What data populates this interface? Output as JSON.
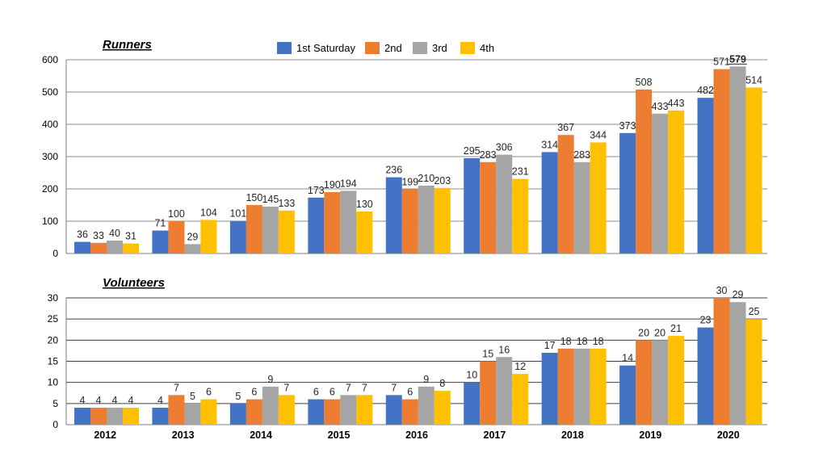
{
  "chart_data": [
    {
      "type": "bar",
      "title": "Runners",
      "categories": [
        "2012",
        "2013",
        "2014",
        "2015",
        "2016",
        "2017",
        "2018",
        "2019",
        "2020"
      ],
      "ylim": [
        0,
        600
      ],
      "yticks": [
        0,
        100,
        200,
        300,
        400,
        500,
        600
      ],
      "legend": "top-center",
      "series": [
        {
          "name": "1st Saturday",
          "color": "#4472C4",
          "values": [
            36,
            71,
            101,
            173,
            236,
            295,
            314,
            373,
            482
          ]
        },
        {
          "name": "2nd",
          "color": "#ED7D31",
          "values": [
            33,
            100,
            150,
            190,
            199,
            283,
            367,
            508,
            571
          ]
        },
        {
          "name": "3rd",
          "color": "#A5A5A5",
          "values": [
            40,
            29,
            145,
            194,
            210,
            306,
            283,
            433,
            579
          ]
        },
        {
          "name": "4th",
          "color": "#FFC000",
          "values": [
            31,
            104,
            133,
            130,
            203,
            231,
            344,
            443,
            514
          ]
        }
      ],
      "highlight": {
        "series": 2,
        "category": 8
      }
    },
    {
      "type": "bar",
      "title": "Volunteers",
      "categories": [
        "2012",
        "2013",
        "2014",
        "2015",
        "2016",
        "2017",
        "2018",
        "2019",
        "2020"
      ],
      "ylim": [
        0,
        30
      ],
      "yticks": [
        0,
        5,
        10,
        15,
        20,
        25,
        30
      ],
      "series": [
        {
          "name": "1st Saturday",
          "color": "#4472C4",
          "values": [
            4,
            4,
            5,
            6,
            7,
            10,
            17,
            14,
            23
          ]
        },
        {
          "name": "2nd",
          "color": "#ED7D31",
          "values": [
            4,
            7,
            6,
            6,
            6,
            15,
            18,
            20,
            30
          ]
        },
        {
          "name": "3rd",
          "color": "#A5A5A5",
          "values": [
            4,
            5,
            9,
            7,
            9,
            16,
            18,
            20,
            29
          ]
        },
        {
          "name": "4th",
          "color": "#FFC000",
          "values": [
            4,
            6,
            7,
            7,
            8,
            12,
            18,
            21,
            25
          ]
        }
      ]
    }
  ]
}
